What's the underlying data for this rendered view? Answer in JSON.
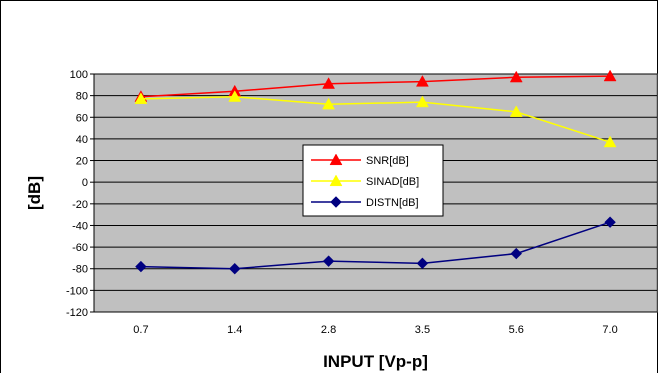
{
  "chart_data": {
    "type": "line",
    "title": "",
    "xlabel": "INPUT [Vp-p]",
    "ylabel": "[dB]",
    "categories": [
      "0.7",
      "1.4",
      "2.8",
      "3.5",
      "5.6",
      "7.0"
    ],
    "ylim": [
      -120,
      100
    ],
    "yticks": [
      100,
      80,
      60,
      40,
      20,
      0,
      -20,
      -40,
      -60,
      -80,
      -100,
      -120
    ],
    "grid": true,
    "legend_position": "center",
    "series": [
      {
        "name": "SNR[dB]",
        "color": "#ff0000",
        "marker": "triangle-icon",
        "values": [
          79,
          84,
          91,
          93,
          97,
          98
        ]
      },
      {
        "name": "SINAD[dB]",
        "color": "#ffff00",
        "marker": "triangle-icon",
        "values": [
          77,
          79,
          72,
          74,
          65,
          37
        ]
      },
      {
        "name": "DISTN[dB]",
        "color": "#000080",
        "marker": "diamond-icon",
        "values": [
          -78,
          -80,
          -73,
          -75,
          -66,
          -37
        ]
      }
    ]
  }
}
